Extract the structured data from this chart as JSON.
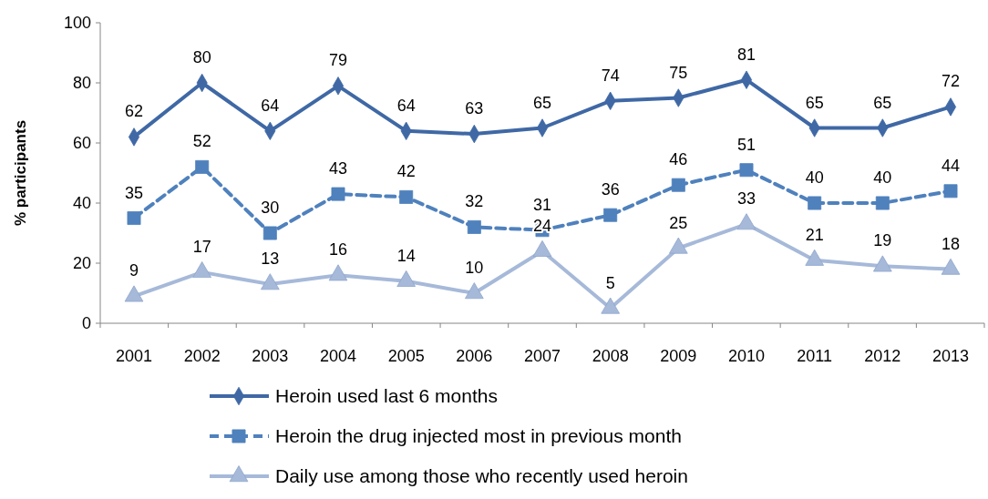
{
  "chart_data": {
    "type": "line",
    "ylabel": "% participants",
    "categories": [
      "2001",
      "2002",
      "2003",
      "2004",
      "2005",
      "2006",
      "2007",
      "2008",
      "2009",
      "2010",
      "2011",
      "2012",
      "2013"
    ],
    "ylim": [
      0,
      100
    ],
    "yticks": [
      0,
      20,
      40,
      60,
      80,
      100
    ],
    "grid": false,
    "legend": "bottom",
    "data_labels": true,
    "series": [
      {
        "name": "Heroin used last 6 months",
        "color": "#3f68a5",
        "marker": "diamond",
        "line_style": "solid",
        "values": [
          62,
          80,
          64,
          79,
          64,
          63,
          65,
          74,
          75,
          81,
          65,
          65,
          72
        ]
      },
      {
        "name": "Heroin the drug injected most in previous month",
        "color": "#4f81bd",
        "marker": "square",
        "line_style": "dashed",
        "values": [
          35,
          52,
          30,
          43,
          42,
          32,
          31,
          36,
          46,
          51,
          40,
          40,
          44
        ]
      },
      {
        "name": "Daily use among those who recently used heroin",
        "color": "#a6b9d9",
        "marker": "triangle",
        "line_style": "solid",
        "values": [
          9,
          17,
          13,
          16,
          14,
          10,
          24,
          5,
          25,
          33,
          21,
          19,
          18
        ]
      }
    ]
  }
}
